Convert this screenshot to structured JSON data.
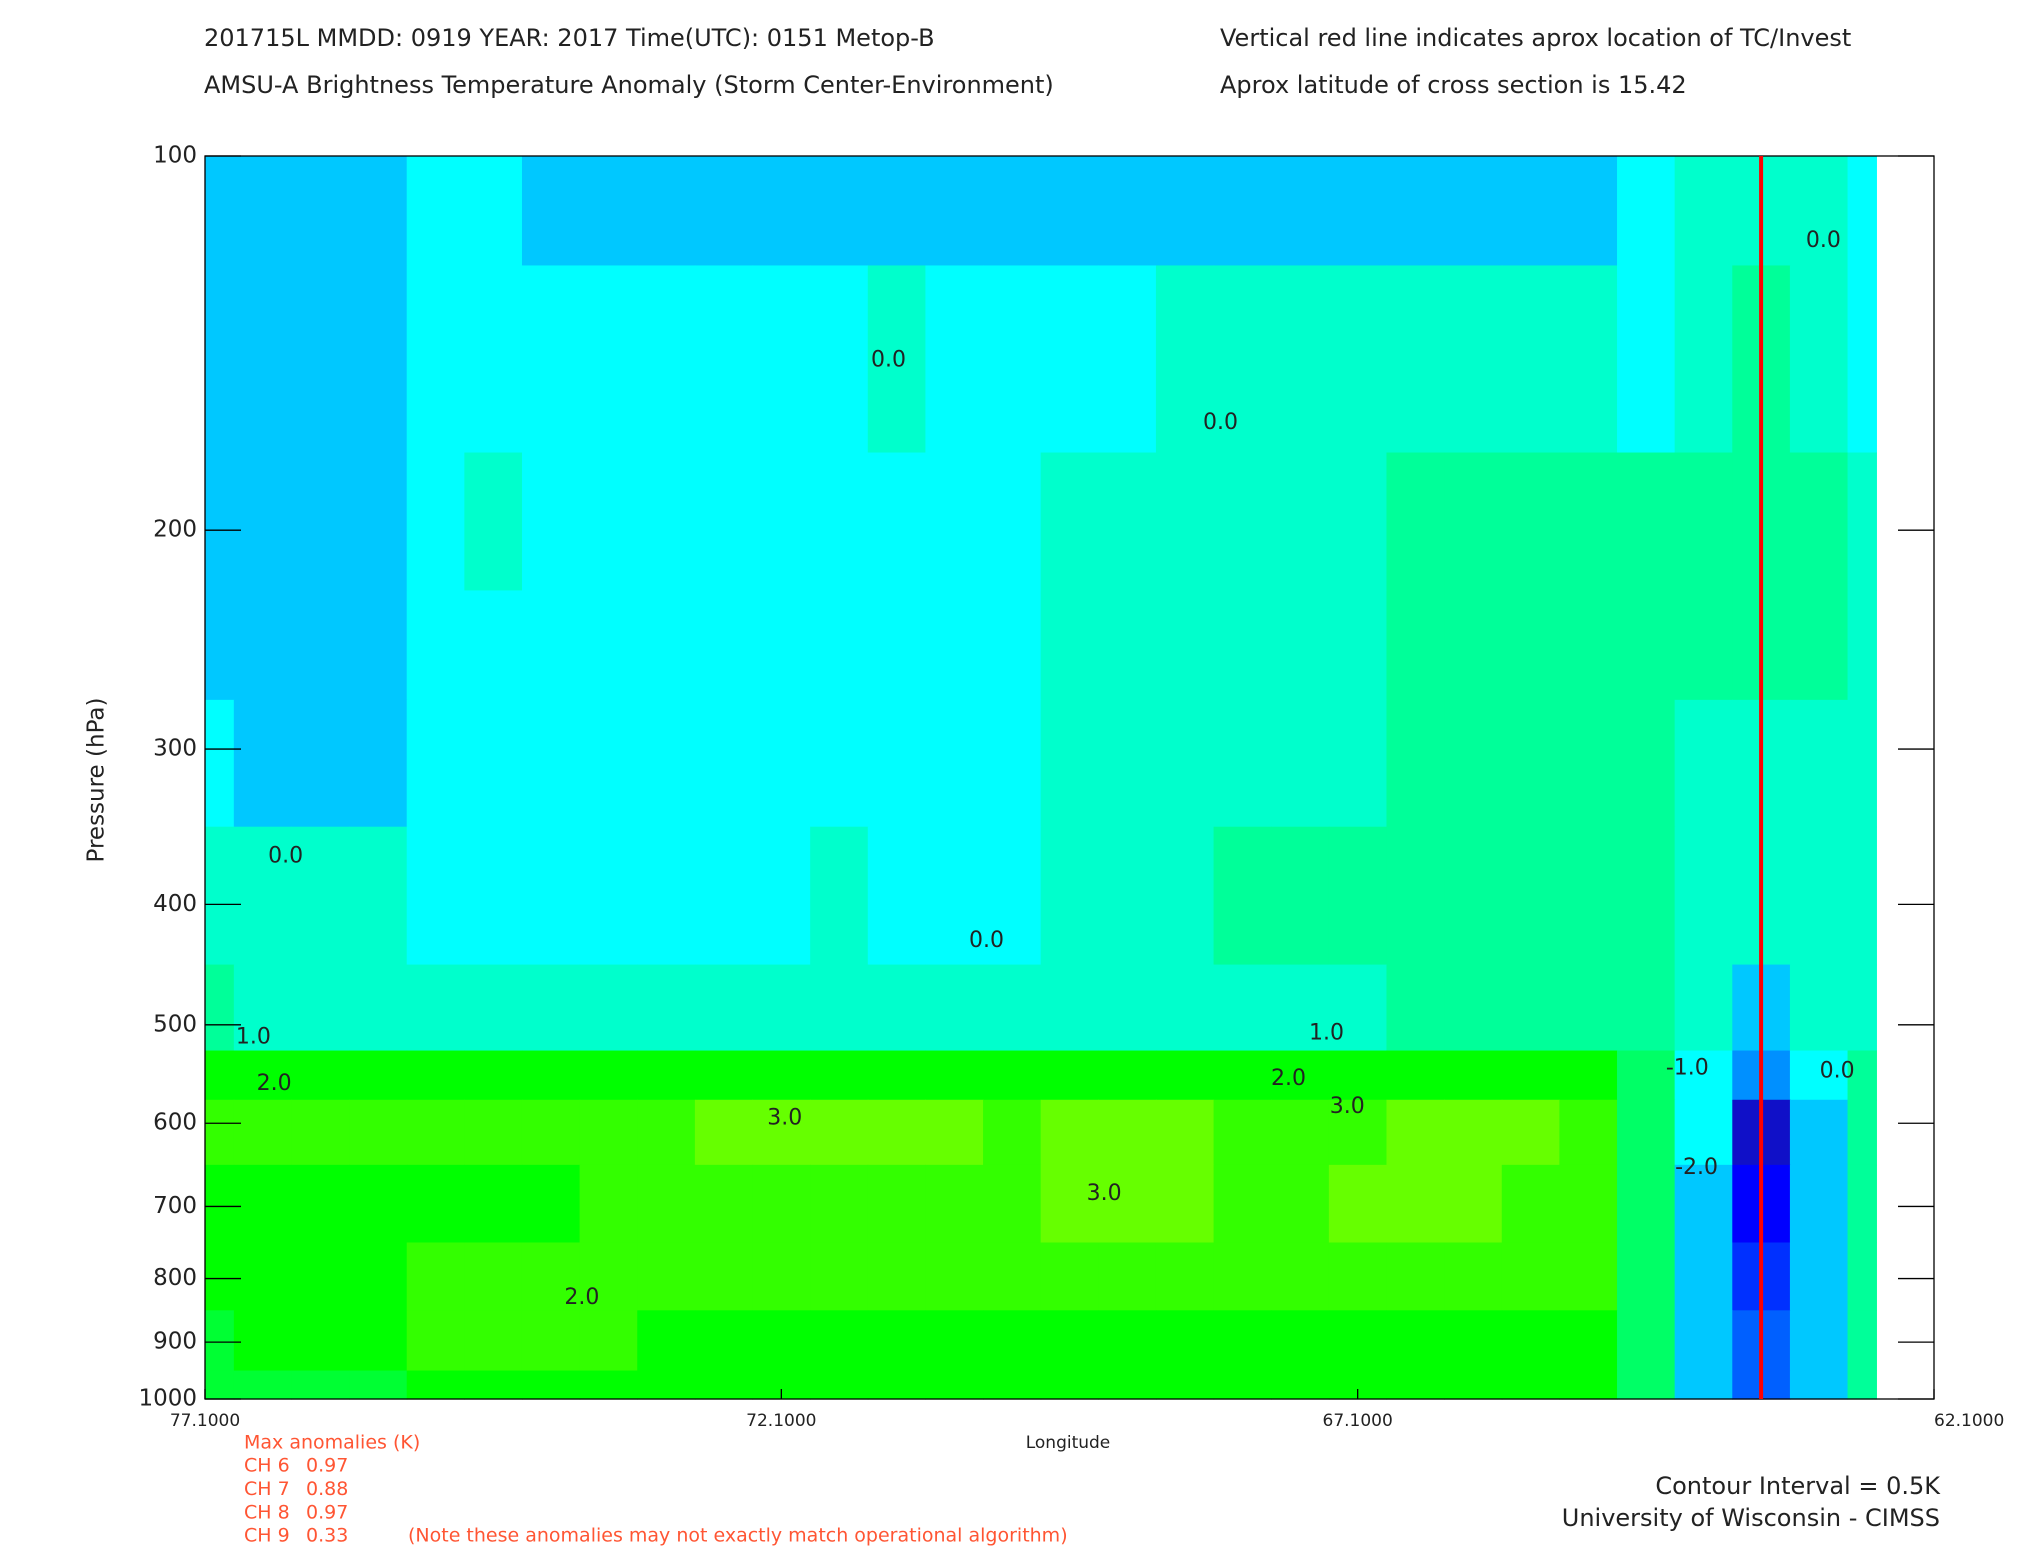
{
  "chart_data": {
    "type": "heatmap",
    "title_lines": [
      "201715L  MMDD: 0919 YEAR: 2017 Time(UTC): 0151 Metop-B",
      "AMSU-A Brightness Temperature Anomaly (Storm Center-Environment)"
    ],
    "subtitle_lines": [
      "Vertical red line indicates aprox location of TC/Invest",
      "Aprox latitude of cross section is 15.42"
    ],
    "xlabel": "Longitude",
    "ylabel": "Pressure (hPa)",
    "xlim": [
      77.1,
      62.1
    ],
    "xticks": [
      {
        "value": 77.1,
        "label": "77.1000"
      },
      {
        "value": 72.1,
        "label": "72.1000"
      },
      {
        "value": 67.1,
        "label": "67.1000"
      },
      {
        "value": 62.1,
        "label": "62.1000"
      }
    ],
    "ylim": [
      100,
      1000
    ],
    "yscale": "log",
    "y_inverted": true,
    "yticks": [
      100,
      200,
      300,
      400,
      500,
      600,
      700,
      800,
      900,
      1000
    ],
    "x": [
      77.1,
      76.6,
      76.1,
      75.6,
      75.1,
      74.6,
      74.1,
      73.6,
      73.1,
      72.6,
      72.1,
      71.6,
      71.1,
      70.6,
      70.1,
      69.6,
      69.1,
      68.6,
      68.1,
      67.6,
      67.1,
      66.6,
      66.1,
      65.6,
      65.1,
      64.6,
      64.1,
      63.6,
      63.1,
      62.6
    ],
    "y": [
      100,
      150,
      200,
      250,
      300,
      400,
      500,
      550,
      600,
      700,
      800,
      900,
      1000
    ],
    "z": [
      [
        -0.7,
        -0.7,
        -0.7,
        -0.7,
        -0.3,
        -0.3,
        -0.7,
        -0.7,
        -0.7,
        -0.7,
        -0.7,
        -0.7,
        -0.7,
        -0.7,
        -0.7,
        -0.7,
        -0.7,
        -0.7,
        -0.7,
        -0.7,
        -0.7,
        -0.7,
        -0.7,
        -0.7,
        -0.7,
        -0.3,
        0.1,
        0.2,
        0.1,
        -0.2
      ],
      [
        -0.7,
        -0.7,
        -0.7,
        -0.7,
        -0.3,
        -0.3,
        -0.3,
        -0.3,
        -0.3,
        -0.3,
        -0.3,
        -0.3,
        0.1,
        -0.3,
        -0.3,
        -0.1,
        -0.05,
        0.1,
        0.05,
        0.05,
        0.05,
        0.05,
        0.05,
        0.1,
        0.1,
        -0.2,
        0.3,
        0.6,
        0.3,
        -0.3
      ],
      [
        -0.7,
        -0.7,
        -0.7,
        -0.7,
        -0.5,
        0.1,
        -0.3,
        -0.3,
        -0.3,
        -0.3,
        -0.3,
        -0.3,
        -0.3,
        -0.3,
        -0.3,
        0.2,
        0.3,
        0.3,
        0.3,
        0.3,
        0.3,
        0.5,
        0.7,
        0.6,
        0.7,
        0.5,
        0.8,
        0.9,
        0.8,
        0.2
      ],
      [
        -0.6,
        -0.6,
        -0.6,
        -0.6,
        -0.4,
        -0.3,
        -0.3,
        -0.3,
        -0.3,
        -0.3,
        -0.3,
        -0.3,
        -0.3,
        -0.3,
        -0.3,
        0.3,
        0.3,
        0.3,
        0.3,
        0.3,
        0.3,
        0.5,
        0.7,
        0.6,
        0.7,
        0.5,
        0.7,
        0.6,
        0.5,
        0.2
      ],
      [
        -0.4,
        -0.55,
        -0.55,
        -0.55,
        -0.3,
        -0.3,
        -0.3,
        -0.3,
        -0.3,
        -0.3,
        -0.3,
        -0.3,
        -0.3,
        -0.3,
        -0.3,
        0.3,
        0.3,
        0.3,
        0.3,
        0.3,
        0.3,
        0.55,
        0.6,
        0.55,
        0.6,
        0.5,
        0.4,
        0.3,
        0.3,
        0.2
      ],
      [
        0.2,
        0.05,
        0.1,
        0.1,
        -0.1,
        -0.1,
        -0.3,
        -0.3,
        -0.3,
        -0.3,
        -0.3,
        0.05,
        -0.3,
        -0.3,
        -0.3,
        0.2,
        0.2,
        0.2,
        0.6,
        0.55,
        0.6,
        0.7,
        0.8,
        0.8,
        0.8,
        0.6,
        0.3,
        0.1,
        0.2,
        0.2
      ],
      [
        0.6,
        0.4,
        0.4,
        0.4,
        0.4,
        0.4,
        0.4,
        0.05,
        0.05,
        0.05,
        0.05,
        0.05,
        0.05,
        0.05,
        0.05,
        0.4,
        0.4,
        0.4,
        0.4,
        0.4,
        0.4,
        0.8,
        0.9,
        0.9,
        0.9,
        0.5,
        0,
        -1.0,
        0,
        0.3
      ],
      [
        2.0,
        2.0,
        2.0,
        2.0,
        2.0,
        2.0,
        2.0,
        2.0,
        2.0,
        2.0,
        2.0,
        2.0,
        2.0,
        2.0,
        2.0,
        2.0,
        2.0,
        2.0,
        2.0,
        2.0,
        2.0,
        2.0,
        2.0,
        2.0,
        2.0,
        1.0,
        -0.3,
        -2.0,
        -0.5,
        0.5
      ],
      [
        2.6,
        2.7,
        2.7,
        2.7,
        2.6,
        2.6,
        2.6,
        2.8,
        2.8,
        3.1,
        3.1,
        3.2,
        3.2,
        3.2,
        2.9,
        3.1,
        3.1,
        3.1,
        2.9,
        2.9,
        2.9,
        3.1,
        3.1,
        3.1,
        2.8,
        1.0,
        -0.5,
        -3.6,
        -0.8,
        0.5
      ],
      [
        2.3,
        2.4,
        2.4,
        2.4,
        2.4,
        2.4,
        2.4,
        2.7,
        2.7,
        2.7,
        2.7,
        2.7,
        2.7,
        2.7,
        2.7,
        3.1,
        3.1,
        3.1,
        2.8,
        2.8,
        3.1,
        3.1,
        3.1,
        2.8,
        2.6,
        1.0,
        -0.8,
        -3.2,
        -1.0,
        0.5
      ],
      [
        2.1,
        2.3,
        2.3,
        2.3,
        2.6,
        2.6,
        2.6,
        2.6,
        2.6,
        2.6,
        2.6,
        2.6,
        2.6,
        2.6,
        2.7,
        2.7,
        2.7,
        2.6,
        2.6,
        2.6,
        2.6,
        2.7,
        2.7,
        2.7,
        2.5,
        1.0,
        -0.8,
        -2.8,
        -1.0,
        0.5
      ],
      [
        1.9,
        2.1,
        2.1,
        2.3,
        2.6,
        2.6,
        2.6,
        2.6,
        2.3,
        2.3,
        2.3,
        2.3,
        2.3,
        2.3,
        2.2,
        2.2,
        2.2,
        2.3,
        2.3,
        2.3,
        2.3,
        2.3,
        2.4,
        2.4,
        2.3,
        1.0,
        -0.8,
        -2.5,
        -1.0,
        0.5
      ],
      [
        1.9,
        1.9,
        1.9,
        1.9,
        2.3,
        2.3,
        2.3,
        2.3,
        2.3,
        2.1,
        2.1,
        2.1,
        2.1,
        2.1,
        2.1,
        2.1,
        2.1,
        2.1,
        2.1,
        2.1,
        2.1,
        2.1,
        2.1,
        2.1,
        2.1,
        1.0,
        -0.8,
        -2.5,
        -1.0,
        0.5
      ]
    ],
    "levels": [
      -4,
      -3.5,
      -3,
      -2.5,
      -2,
      -1.5,
      -1,
      -0.5,
      0,
      0.5,
      1,
      1.5,
      2,
      2.5,
      3,
      3.5
    ],
    "colors": [
      "#1010c8",
      "#0000ff",
      "#0030ff",
      "#0060ff",
      "#0090ff",
      "#00b0ff",
      "#00c8ff",
      "#00ffff",
      "#00ffcc",
      "#00ff99",
      "#00ff66",
      "#00ff33",
      "#00ff00",
      "#33ff00",
      "#66ff00"
    ],
    "contour_labels": [
      {
        "value": 0,
        "label": "0.0",
        "lon": 71.17,
        "pressure": 146
      },
      {
        "value": 0,
        "label": "0.0",
        "lon": 68.29,
        "pressure": 164
      },
      {
        "value": 0,
        "label": "0.0",
        "lon": 63.06,
        "pressure": 117
      },
      {
        "value": 0,
        "label": "0.0",
        "lon": 76.4,
        "pressure": 366
      },
      {
        "value": 0,
        "label": "0.0",
        "lon": 70.32,
        "pressure": 428
      },
      {
        "value": 1,
        "label": "1.0",
        "lon": 76.68,
        "pressure": 512
      },
      {
        "value": 1,
        "label": "1.0",
        "lon": 67.37,
        "pressure": 508
      },
      {
        "value": 2,
        "label": "2.0",
        "lon": 76.5,
        "pressure": 558
      },
      {
        "value": 2,
        "label": "2.0",
        "lon": 67.7,
        "pressure": 553
      },
      {
        "value": 3,
        "label": "3.0",
        "lon": 72.07,
        "pressure": 595
      },
      {
        "value": 3,
        "label": "3.0",
        "lon": 67.19,
        "pressure": 582
      },
      {
        "value": 3,
        "label": "3.0",
        "lon": 69.3,
        "pressure": 684
      },
      {
        "value": 2,
        "label": "2.0",
        "lon": 73.83,
        "pressure": 829
      },
      {
        "value": -1,
        "label": "-1.0",
        "lon": 64.24,
        "pressure": 542
      },
      {
        "value": -2,
        "label": "-2.0",
        "lon": 64.16,
        "pressure": 652
      },
      {
        "value": 0,
        "label": "0.0",
        "lon": 62.94,
        "pressure": 545
      }
    ],
    "marker_lon": 63.6,
    "marker_color": "#ff0000",
    "max_anomalies": {
      "title": "Max anomalies (K)",
      "channels": [
        {
          "label": "CH 6",
          "value": 0.97
        },
        {
          "label": "CH 7",
          "value": 0.88
        },
        {
          "label": "CH 8",
          "value": 0.97
        },
        {
          "label": "CH 9",
          "value": 0.33
        }
      ]
    },
    "note": "(Note these anomalies may not exactly match operational algorithm)",
    "footer_lines": [
      "Contour Interval = 0.5K",
      "University of Wisconsin - CIMSS"
    ]
  }
}
